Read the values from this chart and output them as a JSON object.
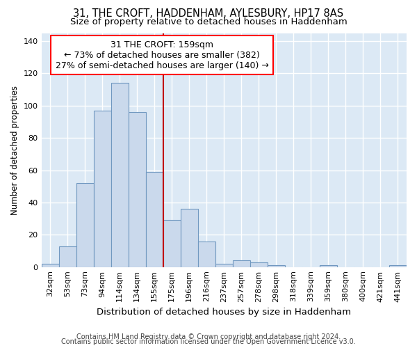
{
  "title1": "31, THE CROFT, HADDENHAM, AYLESBURY, HP17 8AS",
  "title2": "Size of property relative to detached houses in Haddenham",
  "xlabel": "Distribution of detached houses by size in Haddenham",
  "ylabel": "Number of detached properties",
  "footer1": "Contains HM Land Registry data © Crown copyright and database right 2024.",
  "footer2": "Contains public sector information licensed under the Open Government Licence v3.0.",
  "categories": [
    "32sqm",
    "53sqm",
    "73sqm",
    "94sqm",
    "114sqm",
    "134sqm",
    "155sqm",
    "175sqm",
    "196sqm",
    "216sqm",
    "237sqm",
    "257sqm",
    "278sqm",
    "298sqm",
    "318sqm",
    "339sqm",
    "359sqm",
    "380sqm",
    "400sqm",
    "421sqm",
    "441sqm"
  ],
  "values": [
    2,
    13,
    52,
    97,
    114,
    96,
    59,
    29,
    36,
    16,
    2,
    4,
    3,
    1,
    0,
    0,
    1,
    0,
    0,
    0,
    1
  ],
  "bar_color": "#cad9ec",
  "bar_edge_color": "#7098c0",
  "annotation_line1": "31 THE CROFT: 159sqm",
  "annotation_line2": "← 73% of detached houses are smaller (382)",
  "annotation_line3": "27% of semi-detached houses are larger (140) →",
  "vline_color": "#c00000",
  "vline_x_index": 6.5,
  "ylim": [
    0,
    145
  ],
  "yticks": [
    0,
    20,
    40,
    60,
    80,
    100,
    120,
    140
  ],
  "bg_color": "#dce9f5",
  "grid_color": "#ffffff",
  "title1_fontsize": 10.5,
  "title2_fontsize": 9.5,
  "tick_fontsize": 8,
  "ylabel_fontsize": 8.5,
  "xlabel_fontsize": 9.5,
  "annotation_fontsize": 9,
  "footer_fontsize": 7
}
